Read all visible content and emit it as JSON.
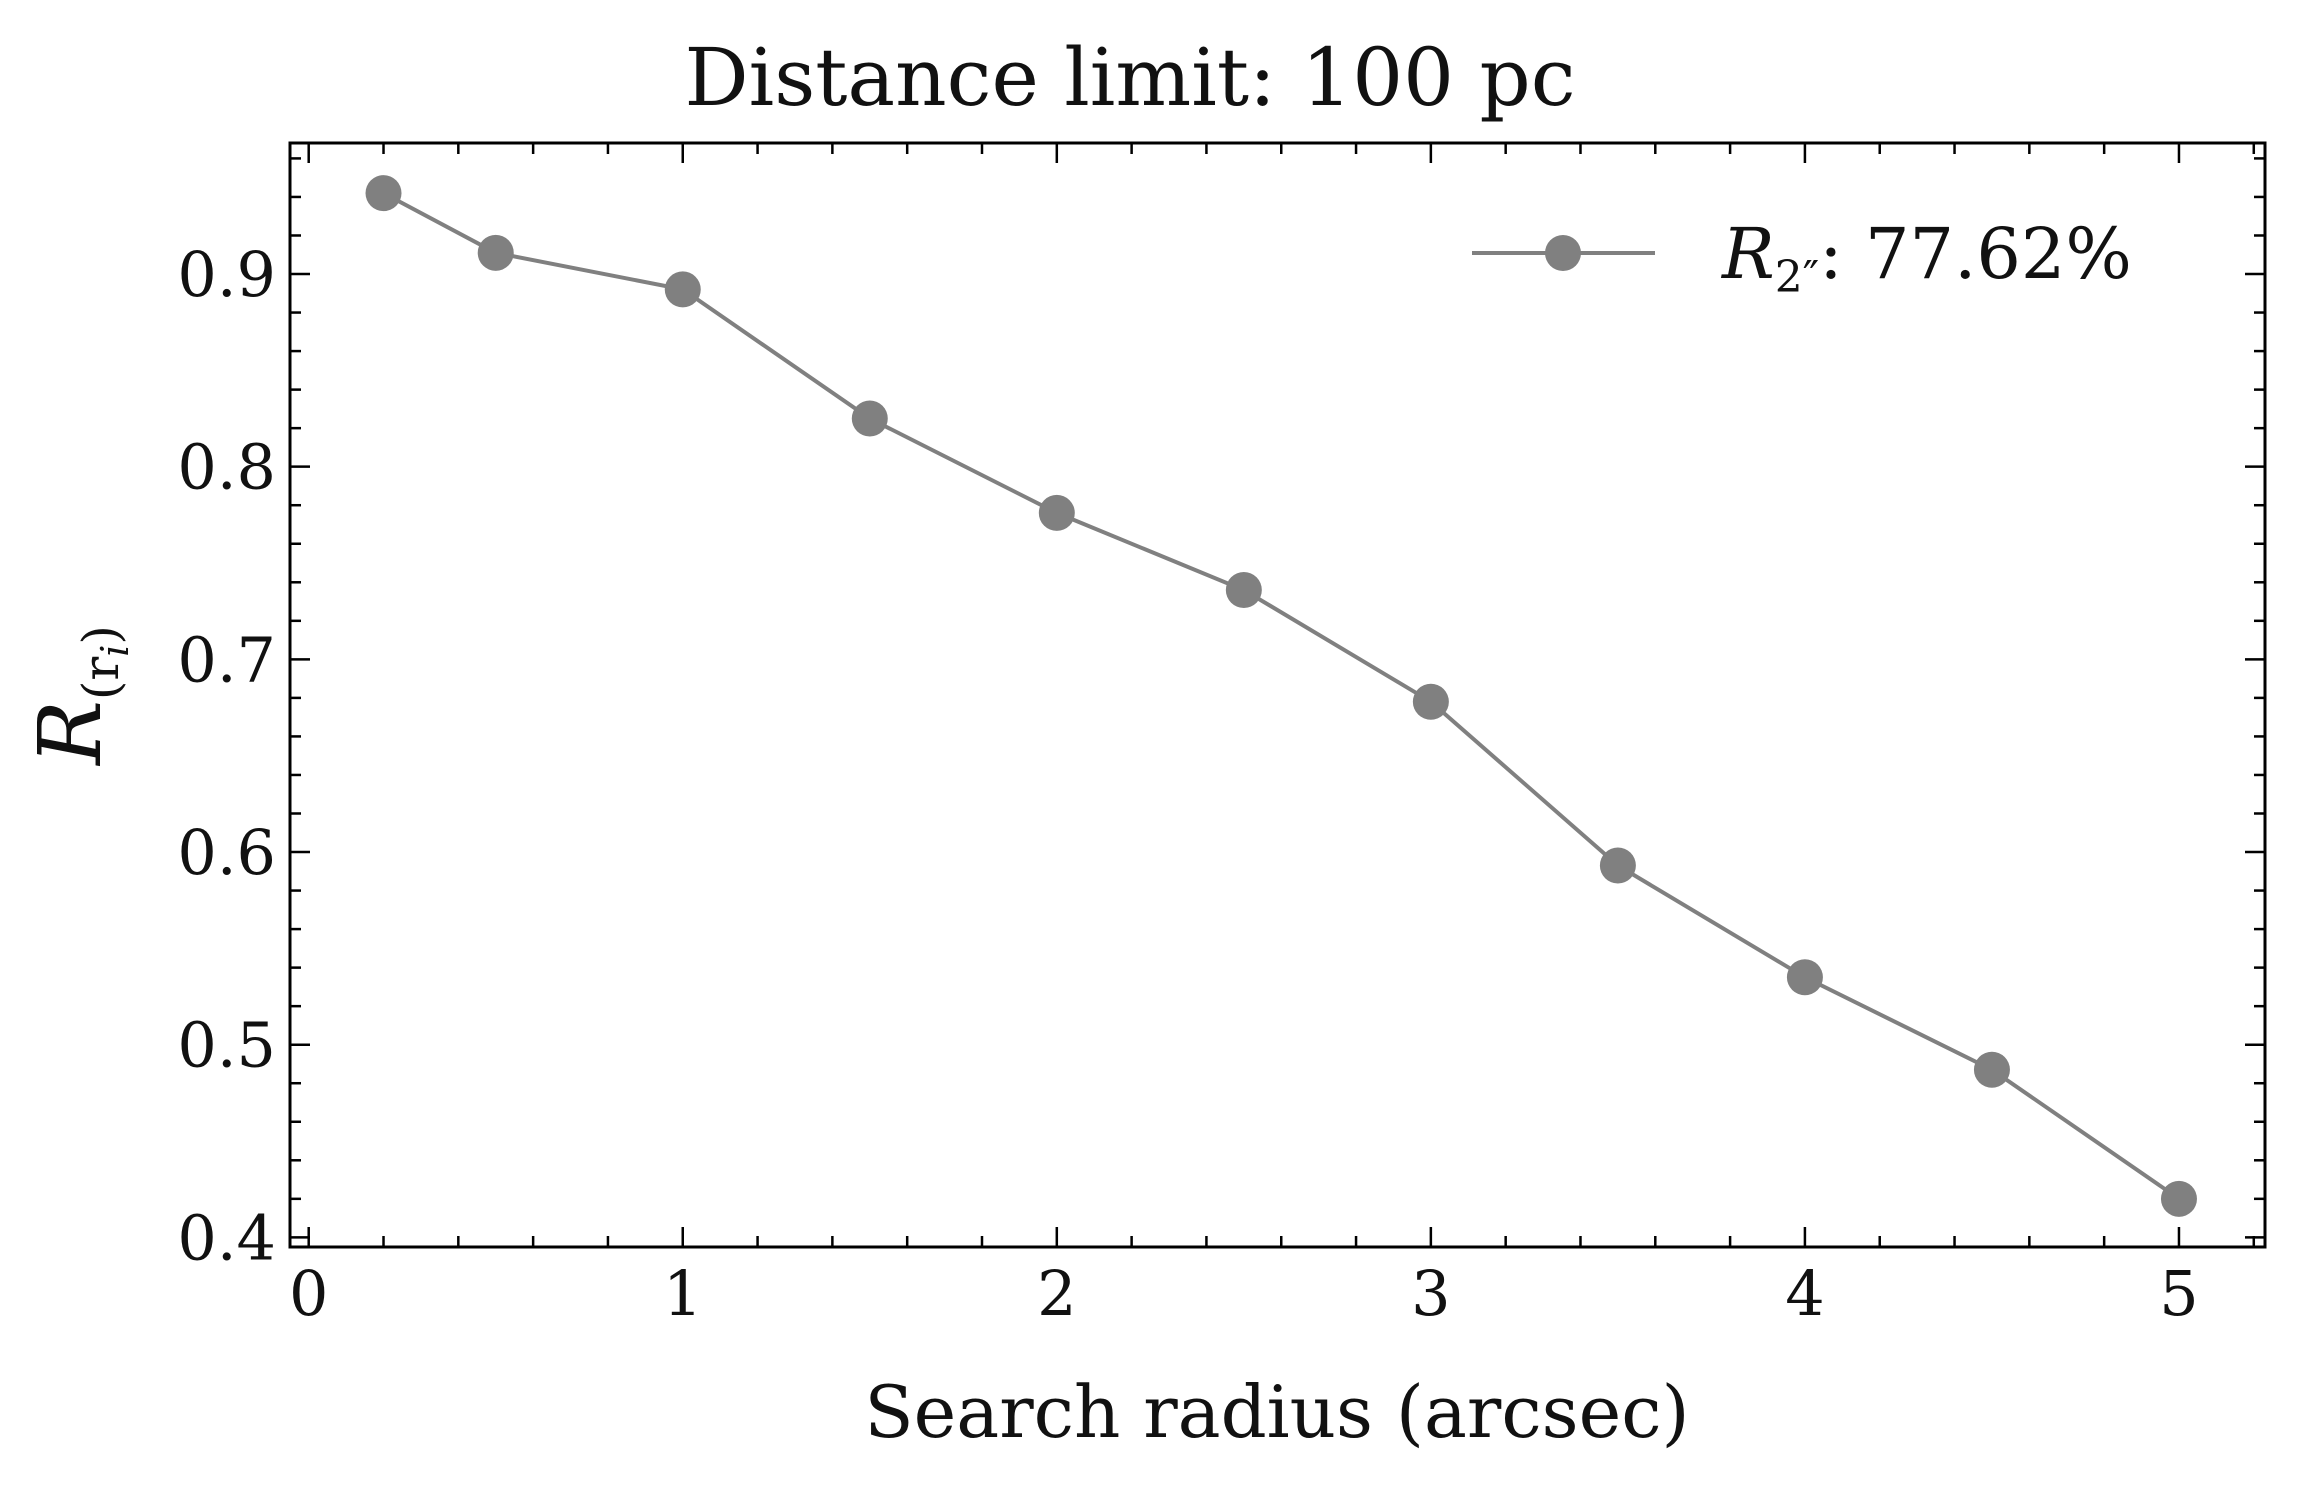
{
  "chart_data": {
    "type": "line",
    "title": "Distance limit: 100 pc",
    "xlabel": "Search radius (arcsec)",
    "ylabel": {
      "base": "R",
      "sub": "(r",
      "subsub": "i",
      "close": ")"
    },
    "xlim": [
      -0.05,
      5.23
    ],
    "ylim": [
      0.395,
      0.968
    ],
    "xticks": [
      0,
      1,
      2,
      3,
      4,
      5
    ],
    "xtick_labels": [
      "0",
      "1",
      "2",
      "3",
      "4",
      "5"
    ],
    "yticks": [
      0.4,
      0.5,
      0.6,
      0.7,
      0.8,
      0.9
    ],
    "ytick_labels": [
      "0.4",
      "0.5",
      "0.6",
      "0.7",
      "0.8",
      "0.9"
    ],
    "x_minor_step": 0.2,
    "y_minor_step": 0.02,
    "grid": false,
    "legend_position": "top-right",
    "series": [
      {
        "name": "R2″: 77.62%",
        "legend_label": {
          "base": "R",
          "sub": "2″",
          "rest": ": 77.62%"
        },
        "color": "#808080",
        "marker": "circle",
        "x": [
          0.2,
          0.5,
          1.0,
          1.5,
          2.0,
          2.5,
          3.0,
          3.5,
          4.0,
          4.5,
          5.0
        ],
        "y": [
          0.942,
          0.911,
          0.892,
          0.825,
          0.776,
          0.736,
          0.678,
          0.593,
          0.535,
          0.487,
          0.42
        ]
      }
    ]
  }
}
